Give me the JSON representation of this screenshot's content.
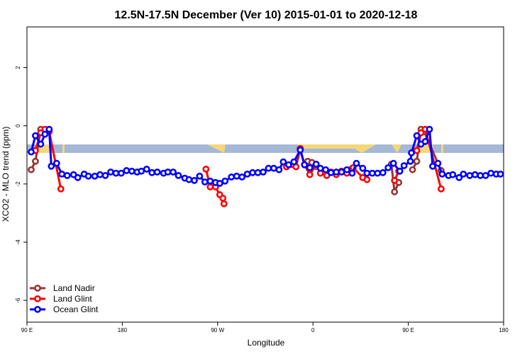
{
  "chart_data": {
    "type": "line",
    "title": "12.5N-17.5N December (Ver 10)   2015-01-01 to 2020-12-18",
    "x_label": "Longitude",
    "y_label": "XCO2 - MLO trend (ppm)",
    "xlim": [
      90,
      540
    ],
    "ylim": [
      -6.75,
      3.4
    ],
    "xticks": [
      {
        "value": 90,
        "label": "90 E"
      },
      180,
      {
        "value": 270,
        "label": "90 W"
      },
      0,
      {
        "value": 450,
        "label": "90 E"
      },
      180
    ],
    "yticks": [
      2,
      0,
      -2,
      -4,
      -6
    ],
    "legend": "bottom-left",
    "series": [
      {
        "name": "Land Nadir",
        "color": "#993333",
        "x": [
          94,
          98,
          103,
          107,
          111,
          230,
          355,
          359,
          363,
          370,
          377,
          387,
          397,
          415,
          434,
          437,
          441,
          447,
          454,
          458,
          462,
          465,
          481
        ],
        "values": [
          -1.51,
          -1.22,
          -0.12,
          -0.2,
          -0.15,
          null,
          -1.22,
          -1.26,
          -1.4,
          null,
          -1.59,
          -1.56,
          -1.46,
          null,
          -1.32,
          -2.27,
          -1.95,
          null,
          -1.51,
          -1.22,
          -0.12,
          -0.2,
          -1.54
        ]
      },
      {
        "name": "Land Glint",
        "color": "#ff0000",
        "x": [
          98,
          103,
          107,
          111,
          122,
          190,
          259,
          263,
          268,
          272,
          275,
          276,
          300,
          335,
          344,
          348,
          352,
          357,
          363,
          367,
          373,
          377,
          382,
          387,
          392,
          398,
          407,
          411,
          425,
          437,
          441,
          450,
          458,
          462,
          466,
          481
        ],
        "values": [
          -0.85,
          -0.24,
          -0.12,
          -0.2,
          -2.17,
          null,
          -1.49,
          -2.1,
          -2.1,
          -2.37,
          -2.49,
          -2.68,
          null,
          -1.41,
          -1.41,
          -0.78,
          -1.34,
          -1.68,
          -1.32,
          -1.63,
          -1.71,
          -1.59,
          -1.68,
          -1.56,
          -1.63,
          -1.44,
          -1.78,
          -1.85,
          null,
          -1.88,
          -1.56,
          null,
          -0.85,
          -0.24,
          -0.12,
          -2.17
        ]
      },
      {
        "name": "Ocean Glint",
        "color": "#0000ff",
        "x": [
          94,
          98,
          103,
          107,
          111,
          113,
          118,
          123,
          128,
          134,
          138,
          144,
          148,
          154,
          159,
          164,
          169,
          174,
          179,
          184,
          189,
          194,
          198,
          203,
          208,
          213,
          219,
          223,
          228,
          233,
          239,
          243,
          248,
          253,
          258,
          263,
          268,
          272,
          277,
          283,
          288,
          293,
          298,
          303,
          308,
          313,
          318,
          323,
          328,
          332,
          337,
          342,
          348,
          352,
          357,
          363,
          367,
          372,
          377,
          382,
          387,
          392,
          397,
          401,
          407,
          411,
          416,
          421,
          426,
          431,
          436,
          442,
          446,
          452,
          453,
          458,
          462,
          466,
          470,
          473,
          478,
          482,
          488,
          492,
          498,
          502,
          508,
          513,
          518,
          523,
          528,
          533,
          537
        ],
        "values": [
          -0.9,
          -0.34,
          -0.63,
          -0.29,
          -0.12,
          -1.39,
          -1.29,
          -1.66,
          -1.71,
          -1.68,
          -1.78,
          -1.66,
          -1.73,
          -1.73,
          -1.68,
          -1.71,
          -1.59,
          -1.63,
          -1.63,
          -1.54,
          -1.56,
          -1.59,
          -1.56,
          -1.49,
          -1.61,
          -1.59,
          -1.63,
          -1.59,
          -1.59,
          -1.71,
          -1.8,
          -1.85,
          -1.88,
          -1.73,
          -1.93,
          -1.9,
          -1.95,
          -1.98,
          -1.9,
          -1.76,
          -1.73,
          -1.76,
          -1.66,
          -1.61,
          -1.61,
          -1.59,
          -1.46,
          -1.46,
          -1.51,
          -1.24,
          -1.34,
          -1.24,
          -0.83,
          -1.34,
          -1.44,
          -1.32,
          -1.46,
          -1.51,
          -1.61,
          -1.59,
          -1.59,
          -1.51,
          -1.63,
          -1.29,
          -1.46,
          -1.63,
          -1.63,
          -1.63,
          -1.61,
          -1.44,
          -1.29,
          -1.56,
          -1.37,
          -1.22,
          -0.93,
          -0.34,
          -0.63,
          -0.54,
          -0.12,
          -1.39,
          -1.29,
          -1.66,
          -1.71,
          -1.68,
          -1.78,
          -1.66,
          -1.71,
          -1.68,
          -1.71,
          -1.71,
          -1.63,
          -1.66,
          -1.66
        ]
      }
    ]
  }
}
